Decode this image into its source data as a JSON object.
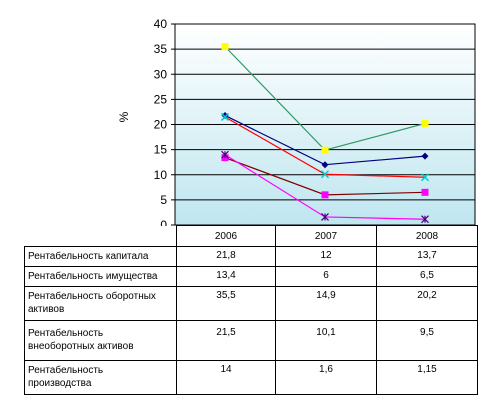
{
  "chart_data": {
    "type": "line",
    "ylabel": "%",
    "ylim": [
      0,
      40
    ],
    "yticks": [
      0,
      5,
      10,
      15,
      20,
      25,
      30,
      35,
      40
    ],
    "grid": true,
    "legend": "table-below",
    "categories": [
      "2006",
      "2007",
      "2008"
    ],
    "series": [
      {
        "name": "Рентабельность капитала",
        "values": [
          21.8,
          12,
          13.7
        ],
        "values_text": [
          "21,8",
          "12",
          "13,7"
        ],
        "color": "#000080",
        "marker": "diamond",
        "marker_color": "#000080"
      },
      {
        "name": "Рентабельность имущества",
        "values": [
          13.4,
          6,
          6.5
        ],
        "values_text": [
          "13,4",
          "6",
          "6,5"
        ],
        "color": "#800000",
        "marker": "square",
        "marker_color": "#FF00FF"
      },
      {
        "name": "Рентабельность оборотных активов",
        "values": [
          35.5,
          14.9,
          20.2
        ],
        "values_text": [
          "35,5",
          "14,9",
          "20,2"
        ],
        "color": "#339966",
        "marker": "square",
        "marker_color": "#FFFF00"
      },
      {
        "name": "Рентабельность внеоборотных активов",
        "values": [
          21.5,
          10.1,
          9.5
        ],
        "values_text": [
          "21,5",
          "10,1",
          "9,5"
        ],
        "color": "#FF0000",
        "marker": "x",
        "marker_color": "#00CCCC"
      },
      {
        "name": "Рентабельность производства",
        "values": [
          14,
          1.6,
          1.15
        ],
        "values_text": [
          "14",
          "1,6",
          "1,15"
        ],
        "color": "#FF00FF",
        "marker": "star",
        "marker_color": "#4B0082"
      }
    ]
  },
  "table": {
    "name_lines": [
      [
        "Рентабельность капитала"
      ],
      [
        "Рентабельность имущества"
      ],
      [
        "Рентабельность оборотных",
        "активов"
      ],
      [
        "Рентабельность",
        "внеоборотных активов"
      ],
      [
        "Рентабельность",
        "производства"
      ]
    ]
  }
}
